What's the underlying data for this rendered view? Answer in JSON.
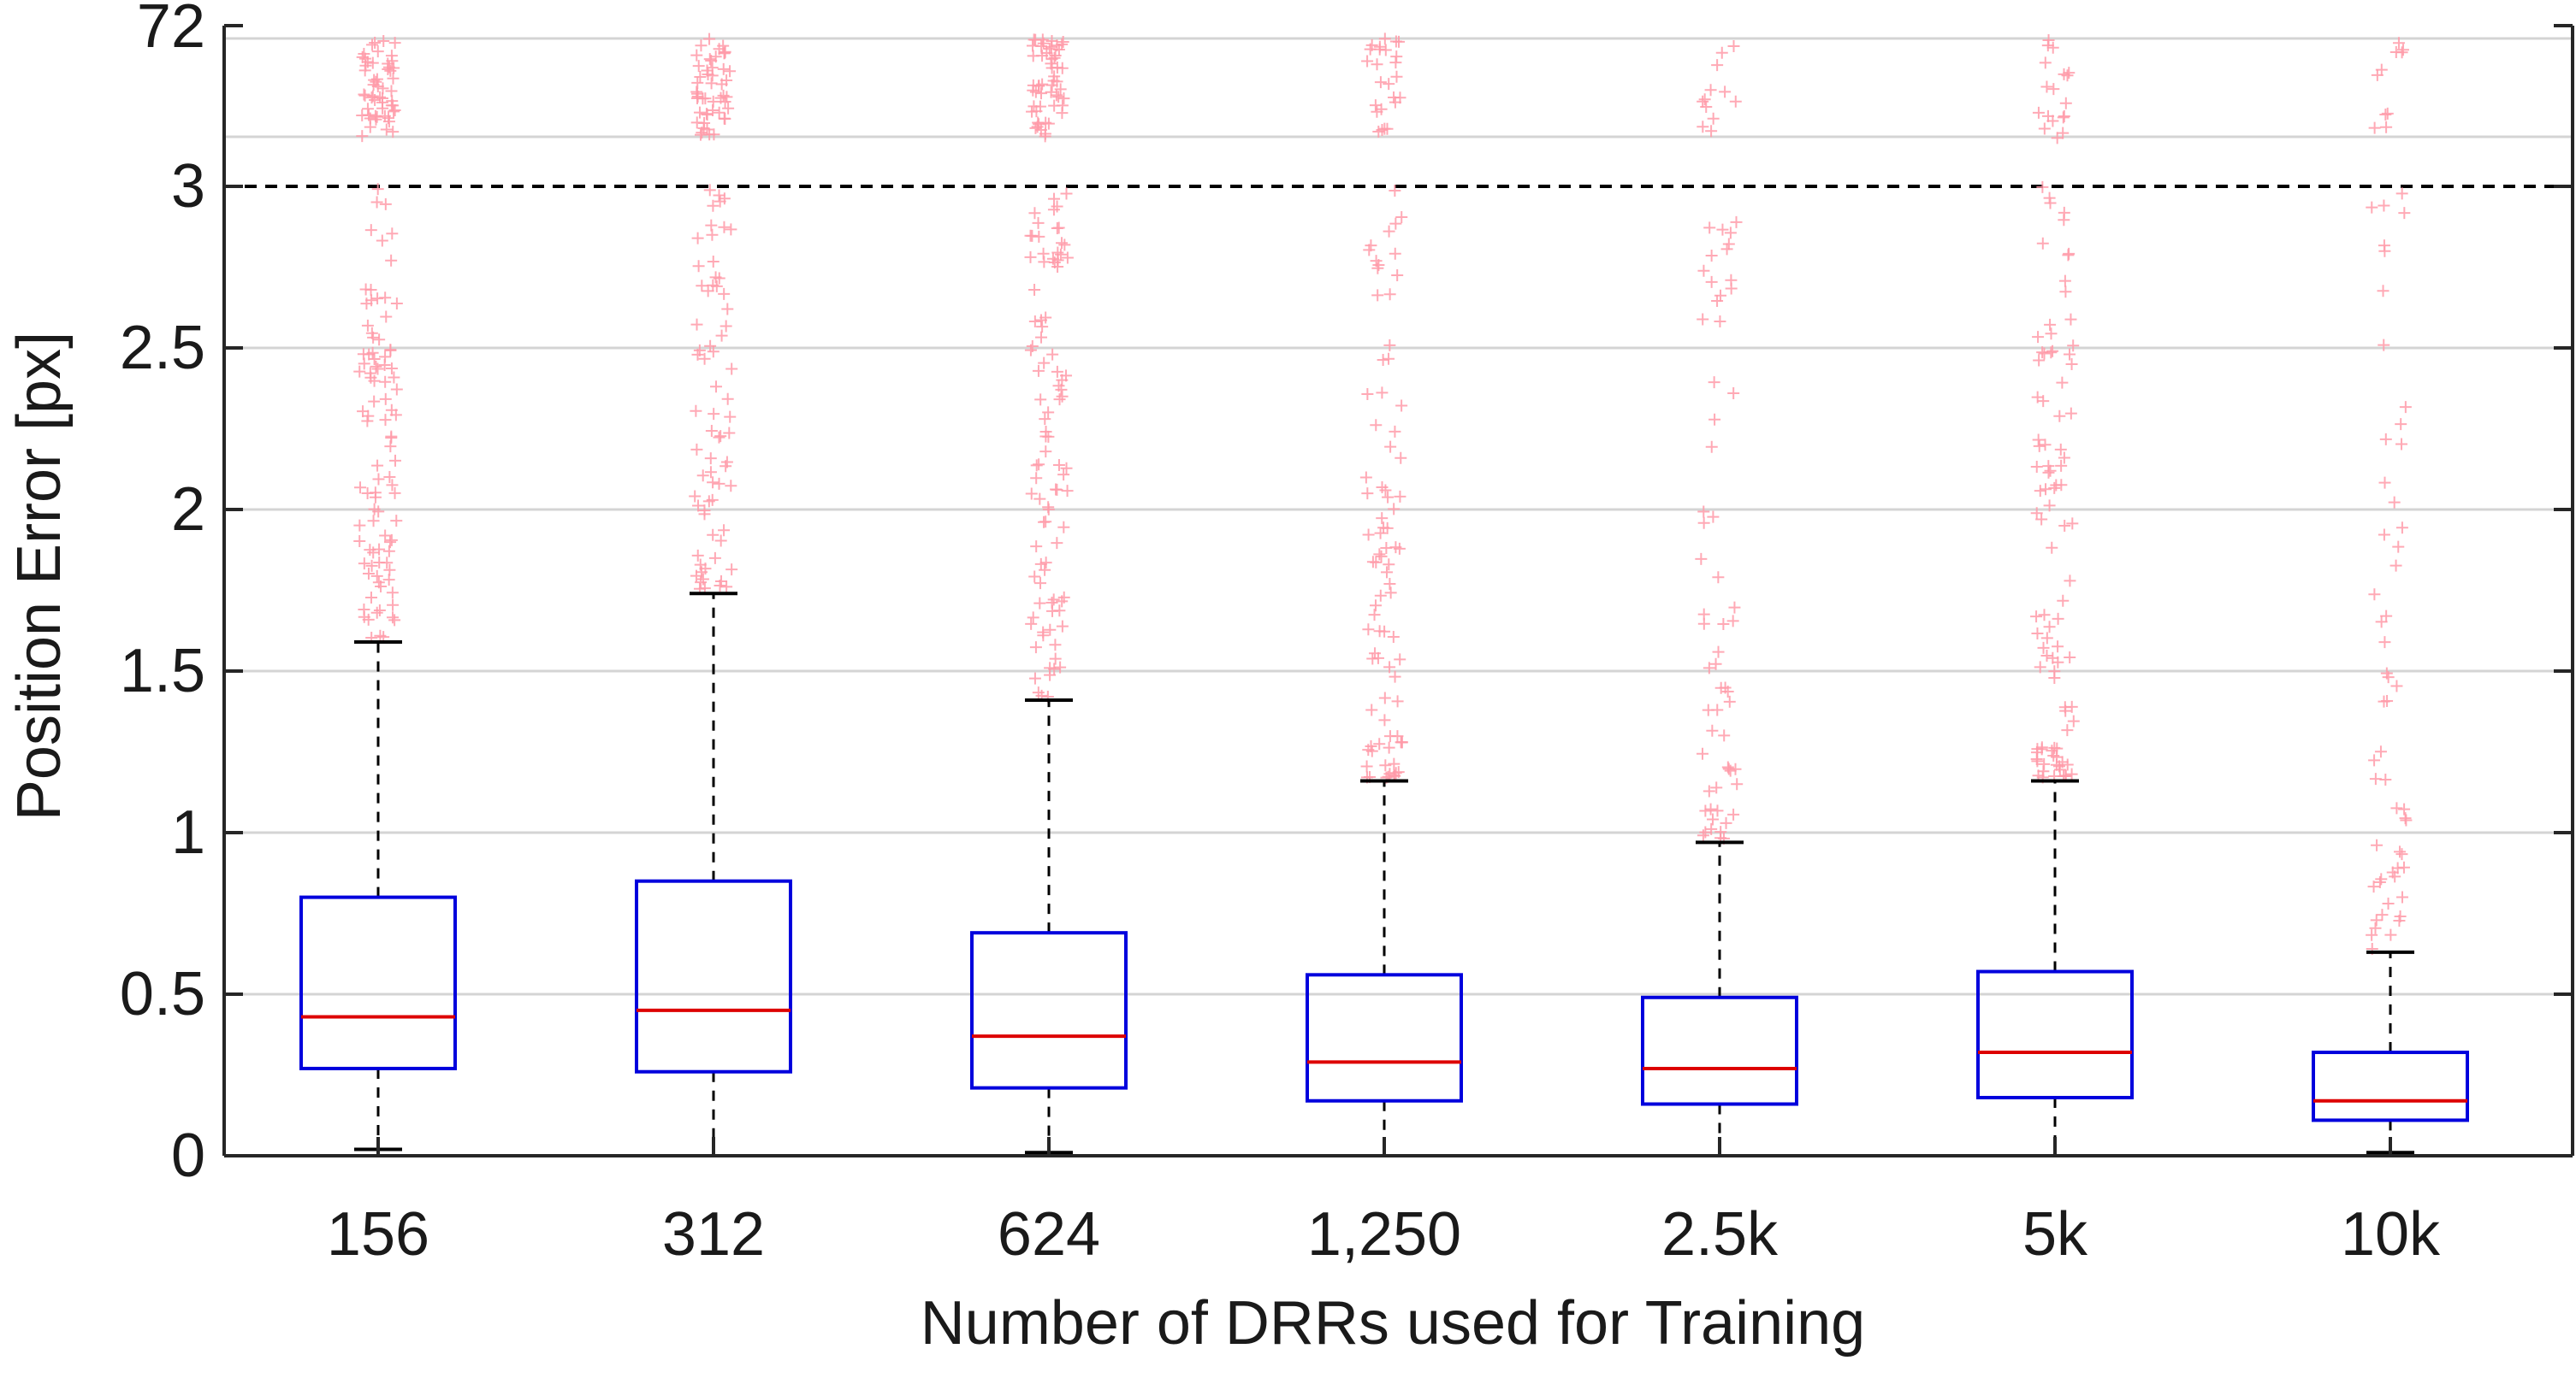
{
  "chart_data": {
    "type": "box",
    "xlabel": "Number of DRRs used for Training",
    "ylabel": "Position Error [px]",
    "categories": [
      "156",
      "312",
      "624",
      "1,250",
      "2.5k",
      "5k",
      "10k"
    ],
    "y_ticks": [
      0,
      0.5,
      1,
      1.5,
      2,
      2.5,
      3
    ],
    "y_top_tick": "72",
    "y_axis": "piecewise: linear 0 to 3 in lower part, compressed 3 to 72 band at top",
    "ylim": [
      0,
      72
    ],
    "threshold_line": 3,
    "grid": true,
    "boxes": [
      {
        "category": "156",
        "whisker_low": 0.02,
        "q1": 0.27,
        "median": 0.43,
        "q3": 0.8,
        "whisker_high": 1.59,
        "outlier_range": [
          1.6,
          72
        ]
      },
      {
        "category": "312",
        "whisker_low": 0.0,
        "q1": 0.26,
        "median": 0.45,
        "q3": 0.85,
        "whisker_high": 1.74,
        "outlier_range": [
          1.75,
          72
        ]
      },
      {
        "category": "624",
        "whisker_low": 0.01,
        "q1": 0.21,
        "median": 0.37,
        "q3": 0.69,
        "whisker_high": 1.41,
        "outlier_range": [
          1.42,
          72
        ]
      },
      {
        "category": "1,250",
        "whisker_low": 0.0,
        "q1": 0.17,
        "median": 0.29,
        "q3": 0.56,
        "whisker_high": 1.16,
        "outlier_range": [
          1.17,
          72
        ]
      },
      {
        "category": "2.5k",
        "whisker_low": 0.0,
        "q1": 0.16,
        "median": 0.27,
        "q3": 0.49,
        "whisker_high": 0.97,
        "outlier_range": [
          0.98,
          72
        ]
      },
      {
        "category": "5k",
        "whisker_low": 0.0,
        "q1": 0.18,
        "median": 0.32,
        "q3": 0.57,
        "whisker_high": 1.16,
        "outlier_range": [
          1.17,
          72
        ]
      },
      {
        "category": "10k",
        "whisker_low": 0.01,
        "q1": 0.11,
        "median": 0.17,
        "q3": 0.32,
        "whisker_high": 0.63,
        "outlier_range": [
          0.64,
          72
        ]
      }
    ],
    "colors": {
      "box": "#0000dd",
      "median": "#dd0000",
      "whisker": "#000000",
      "outlier": "#ff9aa8",
      "grid": "#d4d4d4",
      "threshold": "#000000"
    }
  }
}
